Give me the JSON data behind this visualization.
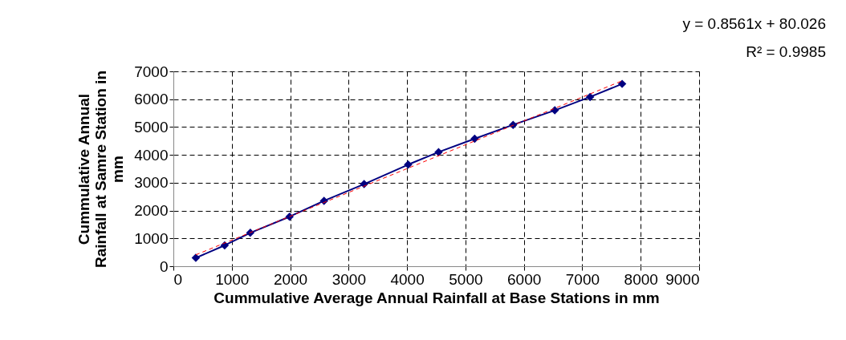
{
  "chart_data": {
    "type": "line",
    "xlabel": "Cummulative Average Annual Rainfall at Base Stations in mm",
    "ylabel": "Cummulative Annual Rainfall at Samre Station in mm",
    "x": [
      384,
      878,
      1317,
      1989,
      2579,
      3265,
      4019,
      4540,
      5158,
      5816,
      6529,
      7133,
      7682
    ],
    "series": [
      {
        "color": "#000080",
        "marker": "diamond",
        "line_style": "solid",
        "values": [
          300,
          750,
          1200,
          1780,
          2350,
          2950,
          3650,
          4100,
          4580,
          5080,
          5600,
          6080,
          6550
        ]
      },
      {
        "color": "#ff0000",
        "marker": "none",
        "line_style": "dashed",
        "x": [
          384,
          7682
        ],
        "values": [
          410,
          6660
        ]
      }
    ],
    "annotations": [
      "y = 0.8561x + 80.026",
      "R² = 0.9985"
    ],
    "xlim": [
      0,
      9000
    ],
    "xticks": [
      0,
      1000,
      2000,
      3000,
      4000,
      5000,
      6000,
      7000,
      8000,
      9000
    ],
    "ylim": [
      0,
      7000
    ],
    "yticks": [
      0,
      1000,
      2000,
      3000,
      4000,
      5000,
      6000,
      7000
    ],
    "grid": true
  }
}
